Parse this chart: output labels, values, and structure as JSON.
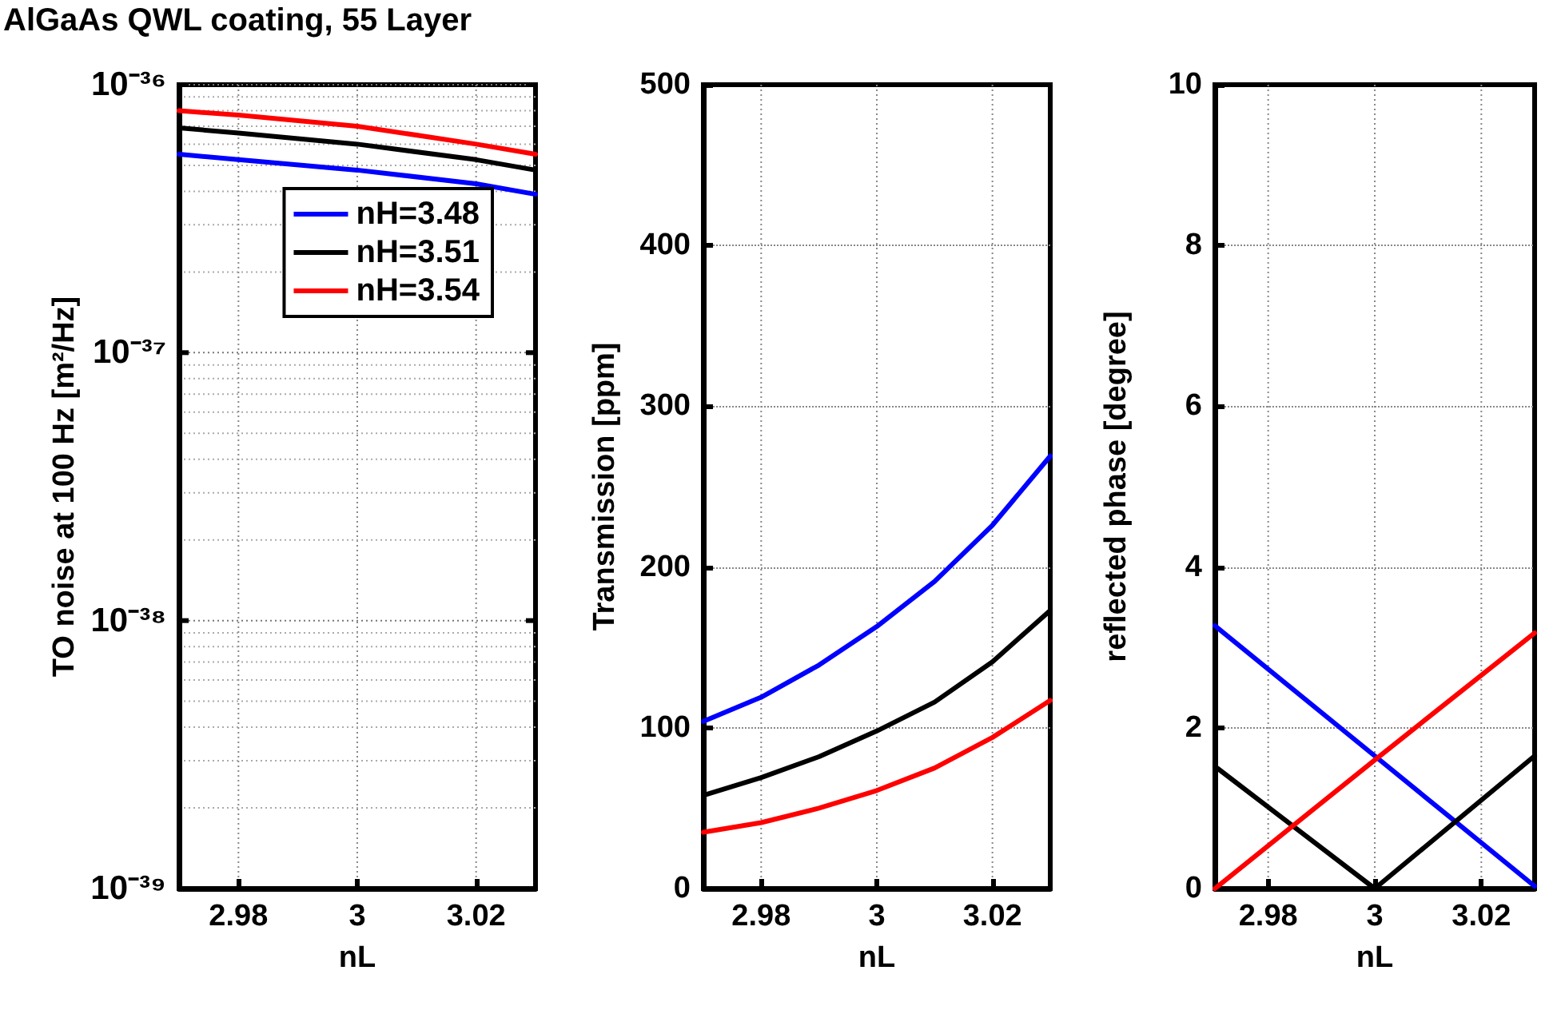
{
  "chart_data": [
    {
      "type": "line",
      "title": "AlGaAs QWL coating, 55 Layer",
      "xlabel": "nL",
      "ylabel": "TO noise at 100 Hz [m²/Hz]",
      "log": "y",
      "x": [
        2.97,
        2.98,
        3.0,
        3.02,
        3.03
      ],
      "xlim": [
        2.97,
        3.03
      ],
      "xticks": [
        2.98,
        3,
        3.02
      ],
      "ylim": [
        1e-39,
        1e-36
      ],
      "yticks": [
        {
          "value": 1e-39,
          "label": "10⁻³⁹"
        },
        {
          "value": 1e-38,
          "label": "10⁻³⁸"
        },
        {
          "value": 1e-37,
          "label": "10⁻³⁷"
        },
        {
          "value": 1e-36,
          "label": "10⁻³⁶"
        }
      ],
      "grid": true,
      "legend": "top right",
      "series": [
        {
          "name": "nH=3.48",
          "color": "#0000ff",
          "values": [
            5.5e-37,
            5.25e-37,
            4.8e-37,
            4.27e-37,
            3.9e-37
          ]
        },
        {
          "name": "nH=3.51",
          "color": "#000000",
          "values": [
            6.9e-37,
            6.6e-37,
            6e-37,
            5.25e-37,
            4.8e-37
          ]
        },
        {
          "name": "nH=3.54",
          "color": "#ff0000",
          "values": [
            8e-37,
            7.7e-37,
            7e-37,
            6e-37,
            5.5e-37
          ]
        }
      ]
    },
    {
      "type": "line",
      "xlabel": "nL",
      "ylabel": "Transmission [ppm]",
      "x": [
        2.97,
        2.98,
        2.99,
        3.0,
        3.01,
        3.02,
        3.03
      ],
      "xlim": [
        2.97,
        3.03
      ],
      "xticks": [
        2.98,
        3,
        3.02
      ],
      "ylim": [
        0,
        500
      ],
      "yticks": [
        0,
        100,
        200,
        300,
        400,
        500
      ],
      "grid": true,
      "series": [
        {
          "color": "#0000ff",
          "values": [
            104,
            119,
            139,
            163,
            191,
            226,
            269
          ]
        },
        {
          "color": "#000000",
          "values": [
            58,
            69,
            82,
            98,
            116,
            141,
            173
          ]
        },
        {
          "color": "#ff0000",
          "values": [
            35,
            41,
            50,
            61,
            75,
            94,
            117
          ]
        }
      ]
    },
    {
      "type": "line",
      "xlabel": "nL",
      "ylabel": "reflected phase [degree]",
      "x": [
        2.97,
        3.0,
        3.03
      ],
      "xlim": [
        2.97,
        3.03
      ],
      "xticks": [
        2.98,
        3,
        3.02
      ],
      "ylim": [
        0,
        10
      ],
      "yticks": [
        0,
        2,
        4,
        6,
        8,
        10
      ],
      "grid": true,
      "series": [
        {
          "color": "#0000ff",
          "values": [
            3.27,
            1.65,
            0.03
          ]
        },
        {
          "color": "#000000",
          "values": [
            1.52,
            0,
            1.65
          ]
        },
        {
          "color": "#ff0000",
          "values": [
            0,
            1.6,
            3.18
          ]
        }
      ]
    }
  ]
}
